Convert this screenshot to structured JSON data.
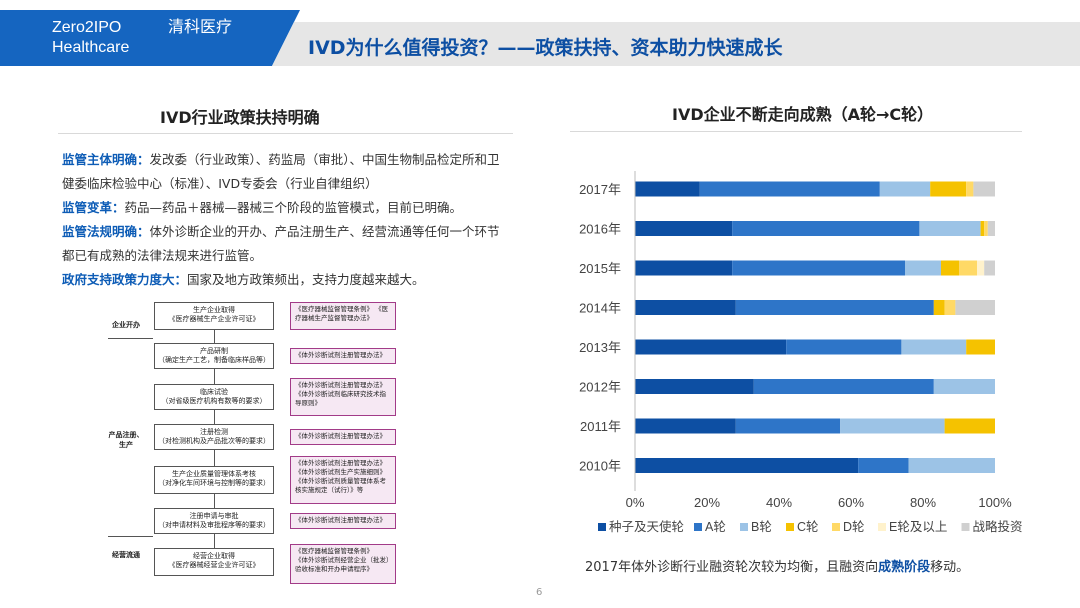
{
  "header": {
    "brand_en_line1": "Zero2IPO",
    "brand_en_line2": "Healthcare",
    "brand_cn": "清科医疗",
    "title": "IVD为什么值得投资？——政策扶持、资本助力快速成长"
  },
  "left": {
    "section_title": "IVD行业政策扶持明确",
    "items": [
      {
        "key": "监管主体明确：",
        "text": "发改委（行业政策）、药监局（审批）、中国生物制品检定所和卫健委临床检验中心（标准）、IVD专委会（行业自律组织）"
      },
      {
        "key": "监管变革：",
        "text": "药品—药品＋器械—器械三个阶段的监管模式，目前已明确。"
      },
      {
        "key": "监管法规明确：",
        "text": "体外诊断企业的开办、产品注册生产、经营流通等任何一个环节都已有成熟的法律法规来进行监管。"
      },
      {
        "key": "政府支持政策力度大：",
        "text": "国家及地方政策频出，支持力度越来越大。"
      }
    ],
    "flowchart": {
      "stages": [
        "企业开办",
        "产品注册、生产",
        "经营流通"
      ],
      "steps": [
        {
          "title": "生产企业取得",
          "sub": "《医疗器械生产企业许可证》",
          "docs": "《医疗器械监督管理条例》\n《医疗器械生产监督管理办法》"
        },
        {
          "title": "产品研制",
          "sub": "（确定生产工艺，制备临床样品等）",
          "docs": "《体外诊断试剂注册管理办法》"
        },
        {
          "title": "临床试验",
          "sub": "（对省级医疗机构有数等的要求）",
          "docs": "《体外诊断试剂注册管理办法》\n《体外诊断试剂临床研究技术指导原则》"
        },
        {
          "title": "注册检测",
          "sub": "（对检测机构及产品批次等的要求）",
          "docs": "《体外诊断试剂注册管理办法》"
        },
        {
          "title": "生产企业质量管理体系考核",
          "sub": "（对净化车间环境与控制等的要求）",
          "docs": "《体外诊断试剂注册管理办法》\n《体外诊断试剂生产实施细则》\n《体外诊断试剂质量管理体系考核实施规定（试行）》等"
        },
        {
          "title": "注册申请与审批",
          "sub": "（对申请材料及审批程序等的要求）",
          "docs": "《体外诊断试剂注册管理办法》"
        },
        {
          "title": "经营企业取得",
          "sub": "《医疗器械经营企业许可证》",
          "docs": "《医疗器械监督管理条例》\n《体外诊断试剂经营企业（批发）验收标准和开办申请程序》"
        }
      ]
    }
  },
  "right": {
    "section_title": "IVD企业不断走向成熟（A轮→C轮）",
    "footnote_pre": "2017年体外诊断行业融资轮次较为均衡，且融资向",
    "footnote_hl": "成熟阶段",
    "footnote_post": "移动。"
  },
  "page_number": "6",
  "colors": {
    "brand_blue": "#1565c0",
    "title_blue": "#0d4fa3",
    "title_bar": "#e6e6e6"
  },
  "chart_data": {
    "type": "bar",
    "orientation": "horizontal",
    "stacked": true,
    "percent": true,
    "categories": [
      "2017年",
      "2016年",
      "2015年",
      "2014年",
      "2013年",
      "2012年",
      "2011年",
      "2010年"
    ],
    "xlim": [
      0,
      100
    ],
    "x_ticks": [
      "0%",
      "20%",
      "40%",
      "60%",
      "80%",
      "100%"
    ],
    "legend_position": "bottom",
    "grid": false,
    "series": [
      {
        "name": "种子及天使轮",
        "color": "#0d4fa3",
        "values": [
          18,
          27,
          27,
          28,
          42,
          33,
          28,
          62
        ]
      },
      {
        "name": "A轮",
        "color": "#2e75c8",
        "values": [
          50,
          52,
          48,
          55,
          32,
          50,
          29,
          14
        ]
      },
      {
        "name": "B轮",
        "color": "#9cc3e6",
        "values": [
          14,
          17,
          10,
          0,
          18,
          17,
          29,
          24
        ]
      },
      {
        "name": "C轮",
        "color": "#f5c200",
        "values": [
          10,
          1,
          5,
          3,
          8,
          0,
          14,
          0
        ]
      },
      {
        "name": "D轮",
        "color": "#ffd966",
        "values": [
          2,
          1,
          5,
          3,
          0,
          0,
          0,
          0
        ]
      },
      {
        "name": "E轮及以上",
        "color": "#fff2cc",
        "values": [
          0,
          0,
          2,
          0,
          0,
          0,
          0,
          0
        ]
      },
      {
        "name": "战略投资",
        "color": "#d0d0d0",
        "values": [
          6,
          2,
          3,
          11,
          0,
          0,
          0,
          0
        ]
      }
    ]
  }
}
